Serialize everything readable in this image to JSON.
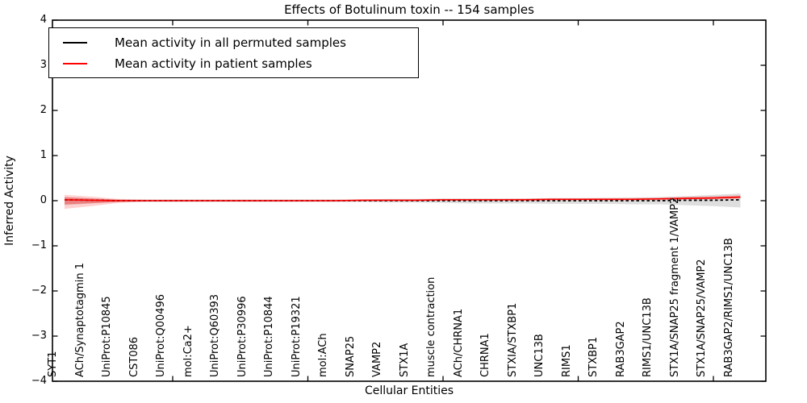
{
  "chart_data": {
    "type": "line",
    "title": "Effects of Botulinum toxin -- 154 samples",
    "xlabel": "Cellular Entities",
    "ylabel": "Inferred Activity",
    "ylim": [
      -4,
      4
    ],
    "yticks": [
      4,
      3,
      2,
      1,
      0,
      -1,
      -2,
      -3,
      -4
    ],
    "ytick_labels": [
      "4",
      "3",
      "2",
      "1",
      "0",
      "−1",
      "−2",
      "−3",
      "−4"
    ],
    "xticks_major_positions": [
      5,
      10,
      15,
      20,
      25
    ],
    "grid": false,
    "legend_position": "upper left",
    "categories": [
      "SYT1",
      "ACh/Synaptotagmin 1",
      "UniProt:P10845",
      "CST086",
      "UniProt:Q00496",
      "mol:Ca2+",
      "UniProt:Q60393",
      "UniProt:P30996",
      "UniProt:P10844",
      "UniProt:P19321",
      "mol:ACh",
      "SNAP25",
      "VAMP2",
      "STX1A",
      "muscle contraction",
      "ACh/CHRNA1",
      "CHRNA1",
      "STXIA/STXBP1",
      "UNC13B",
      "RIMS1",
      "STXBP1",
      "RAB3GAP2",
      "RIMS1/UNC13B",
      "STX1A/SNAP25 fragment 1/VAMP2",
      "STX1A/SNAP25/VAMP2",
      "RAB3GAP2/RIMS1/UNC13B"
    ],
    "series": [
      {
        "name": "Mean activity in all permuted samples",
        "color": "#000000",
        "linestyle": "dashed",
        "band_color": "rgba(0,0,0,0.13)",
        "values": [
          0.02,
          0.01,
          0,
          0,
          0,
          0,
          0,
          0,
          0,
          0,
          0,
          0,
          0,
          0,
          0,
          0,
          0,
          0,
          0,
          0,
          0,
          0,
          0,
          0.01,
          0.01,
          0.02
        ],
        "band_upper": [
          0.08,
          0.05,
          0.03,
          0.03,
          0.03,
          0.03,
          0.03,
          0.03,
          0.03,
          0.03,
          0.03,
          0.03,
          0.04,
          0.04,
          0.05,
          0.05,
          0.05,
          0.05,
          0.06,
          0.06,
          0.06,
          0.07,
          0.08,
          0.1,
          0.13,
          0.16
        ],
        "band_lower": [
          -0.1,
          -0.06,
          -0.03,
          -0.03,
          -0.03,
          -0.03,
          -0.03,
          -0.03,
          -0.03,
          -0.03,
          -0.03,
          -0.03,
          -0.04,
          -0.04,
          -0.05,
          -0.06,
          -0.06,
          -0.06,
          -0.07,
          -0.07,
          -0.07,
          -0.08,
          -0.08,
          -0.1,
          -0.12,
          -0.15
        ]
      },
      {
        "name": "Mean activity in patient samples",
        "color": "#ff0000",
        "linestyle": "solid",
        "band_color": "rgba(255,0,0,0.18)",
        "values": [
          0.02,
          0.01,
          0,
          0,
          0,
          0,
          0,
          0,
          0,
          0,
          0,
          0.01,
          0.01,
          0.01,
          0.02,
          0.02,
          0.02,
          0.02,
          0.03,
          0.03,
          0.03,
          0.03,
          0.04,
          0.05,
          0.06,
          0.08
        ],
        "band_upper": [
          0.13,
          0.09,
          0.04,
          0.02,
          0.02,
          0.02,
          0.02,
          0.02,
          0.02,
          0.02,
          0.02,
          0.03,
          0.03,
          0.03,
          0.04,
          0.04,
          0.04,
          0.05,
          0.05,
          0.05,
          0.06,
          0.06,
          0.07,
          0.09,
          0.1,
          0.12
        ],
        "band_lower": [
          -0.18,
          -0.12,
          -0.05,
          -0.02,
          -0.02,
          -0.02,
          -0.02,
          -0.02,
          -0.02,
          -0.02,
          -0.02,
          -0.01,
          -0.01,
          -0.01,
          0,
          0,
          0,
          0,
          0.01,
          0.01,
          0.01,
          0.01,
          0.01,
          0.02,
          0.03,
          0.04
        ]
      }
    ]
  }
}
